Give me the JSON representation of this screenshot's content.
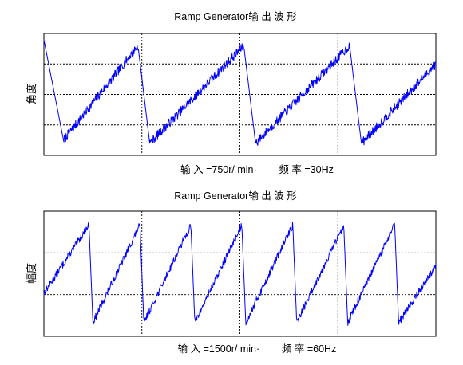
{
  "chart_data": [
    {
      "type": "line",
      "title": "Ramp Generator输 出 波 形",
      "xlabel": "输 入 =750r/ min·        频 率 =30Hz",
      "ylabel": "角度",
      "grid": true,
      "x_divisions": 4,
      "y_divisions": 4,
      "series": [
        {
          "color": "#0000ff",
          "ramp": {
            "x": [
              0.0,
              0.05,
              0.24,
              0.27,
              0.51,
              0.54,
              0.78,
              0.81,
              1.0
            ],
            "y": [
              3.8,
              0.5,
              3.6,
              0.4,
              3.6,
              0.4,
              3.6,
              0.4,
              3.0
            ]
          }
        }
      ]
    },
    {
      "type": "line",
      "title": "Ramp Generator输 出 波 形",
      "xlabel": "输 入 =1500r/ min·        频 率 =60Hz",
      "ylabel": "幅度",
      "grid": true,
      "x_divisions": 4,
      "y_divisions": 3,
      "series": [
        {
          "color": "#0000ff",
          "ramp": {
            "x": [
              0.0,
              0.115,
              0.125,
              0.245,
              0.255,
              0.375,
              0.385,
              0.505,
              0.515,
              0.635,
              0.645,
              0.765,
              0.775,
              0.895,
              0.905,
              1.0
            ],
            "y": [
              1.1,
              2.85,
              0.35,
              2.85,
              0.35,
              2.85,
              0.35,
              2.85,
              0.35,
              2.85,
              0.35,
              2.85,
              0.35,
              2.85,
              0.35,
              1.8
            ]
          }
        }
      ]
    }
  ]
}
